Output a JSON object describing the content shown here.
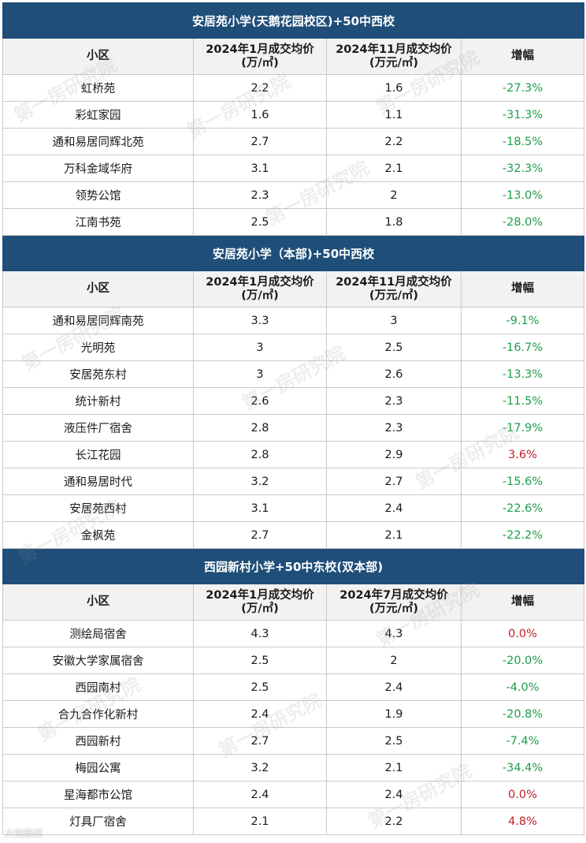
{
  "sections": [
    {
      "title": "安居苑小学(天鹅花园校区)+50中西校",
      "headers": [
        "小区",
        "2024年1月成交均价",
        "(万/㎡)",
        "2024年11月成交均价",
        "(万元/㎡)",
        "增幅"
      ],
      "rows": [
        {
          "name": "虹桥苑",
          "jan": "2.2",
          "later": "1.6",
          "change": "-27.3%"
        },
        {
          "name": "彩虹家园",
          "jan": "1.6",
          "later": "1.1",
          "change": "-31.3%"
        },
        {
          "name": "通和易居同辉北苑",
          "jan": "2.7",
          "later": "2.2",
          "change": "-18.5%"
        },
        {
          "name": "万科金域华府",
          "jan": "3.1",
          "later": "2.1",
          "change": "-32.3%"
        },
        {
          "name": "领势公馆",
          "jan": "2.3",
          "later": "2",
          "change": "-13.0%"
        },
        {
          "name": "江南书苑",
          "jan": "2.5",
          "later": "1.8",
          "change": "-28.0%"
        }
      ]
    },
    {
      "title": "安居苑小学（本部)+50中西校",
      "headers": [
        "小区",
        "2024年1月成交均价",
        "(万/㎡)",
        "2024年11月成交均价",
        "(万元/㎡)",
        "增幅"
      ],
      "rows": [
        {
          "name": "通和易居同辉南苑",
          "jan": "3.3",
          "later": "3",
          "change": "-9.1%"
        },
        {
          "name": "光明苑",
          "jan": "3",
          "later": "2.5",
          "change": "-16.7%"
        },
        {
          "name": "安居苑东村",
          "jan": "3",
          "later": "2.6",
          "change": "-13.3%"
        },
        {
          "name": "统计新村",
          "jan": "2.6",
          "later": "2.3",
          "change": "-11.5%"
        },
        {
          "name": "液压件厂宿舍",
          "jan": "2.8",
          "later": "2.3",
          "change": "-17.9%"
        },
        {
          "name": "长江花园",
          "jan": "2.8",
          "later": "2.9",
          "change": "3.6%"
        },
        {
          "name": "通和易居时代",
          "jan": "3.2",
          "later": "2.7",
          "change": "-15.6%"
        },
        {
          "name": "安居苑西村",
          "jan": "3.1",
          "later": "2.4",
          "change": "-22.6%"
        },
        {
          "name": "金枫苑",
          "jan": "2.7",
          "later": "2.1",
          "change": "-22.2%"
        }
      ]
    },
    {
      "title": "西园新村小学+50中东校(双本部)",
      "headers": [
        "小区",
        "2024年1月成交均价",
        "(万/㎡)",
        "2024年7月成交均价",
        "(万元/㎡)",
        "增幅"
      ],
      "rows": [
        {
          "name": "测绘局宿舍",
          "jan": "4.3",
          "later": "4.3",
          "change": "0.0%"
        },
        {
          "name": "安徽大学家属宿舍",
          "jan": "2.5",
          "later": "2",
          "change": "-20.0%"
        },
        {
          "name": "西园南村",
          "jan": "2.5",
          "later": "2.4",
          "change": "-4.0%"
        },
        {
          "name": "合九合作化新村",
          "jan": "2.4",
          "later": "1.9",
          "change": "-20.8%"
        },
        {
          "name": "西园新村",
          "jan": "2.7",
          "later": "2.5",
          "change": "-7.4%"
        },
        {
          "name": "梅园公寓",
          "jan": "3.2",
          "later": "2.1",
          "change": "-34.4%"
        },
        {
          "name": "星海都市公馆",
          "jan": "2.4",
          "later": "2.4",
          "change": "0.0%"
        },
        {
          "name": "灯具厂宿舍",
          "jan": "2.1",
          "later": "2.2",
          "change": "4.8%"
        }
      ]
    }
  ],
  "watermark": "第一房研究院",
  "corner_logo": "大皖新闻",
  "colors": {
    "header_bg": "#1f4e79",
    "negative": "#1e9e4a",
    "non_negative": "#c0202a"
  }
}
